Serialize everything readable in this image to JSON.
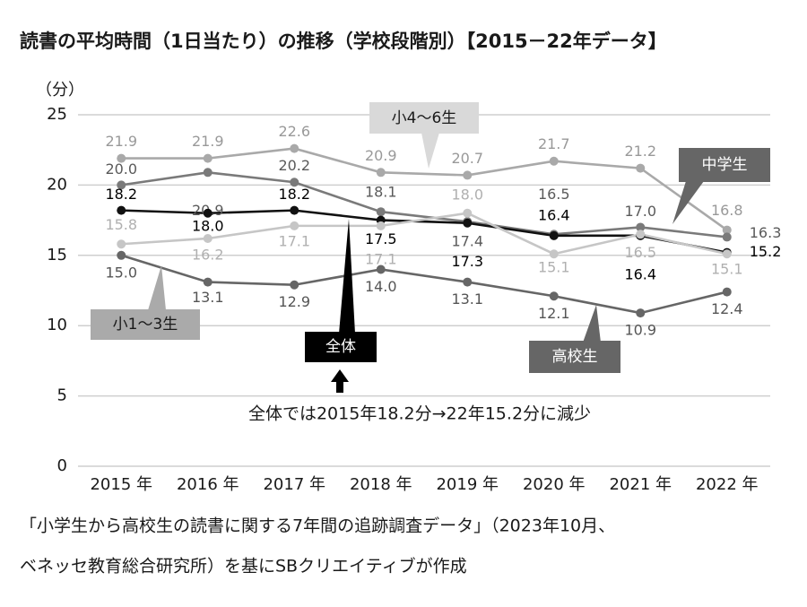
{
  "chart_data": {
    "type": "line",
    "title": "読書の平均時間（1日当たり）の推移（学校段階別）【2015－22年データ】",
    "y_label": "（分）",
    "categories": [
      "2015 年",
      "2016 年",
      "2017 年",
      "2018 年",
      "2019 年",
      "2020 年",
      "2021 年",
      "2022 年"
    ],
    "ylim": [
      0,
      25
    ],
    "yticks": [
      0,
      5,
      10,
      15,
      20,
      25
    ],
    "grid": true,
    "series": [
      {
        "name": "小4〜6生",
        "color": "#a9a9a9",
        "values": [
          21.9,
          21.9,
          22.6,
          20.9,
          20.7,
          21.7,
          21.2,
          16.8
        ],
        "value_labels": [
          "21.9",
          "21.9",
          "22.6",
          "20.9",
          "20.7",
          "21.7",
          "21.2",
          "16.8"
        ]
      },
      {
        "name": "中学生",
        "color": "#7a7a7a",
        "values": [
          20.0,
          20.9,
          20.2,
          18.1,
          17.4,
          16.5,
          17.0,
          16.3
        ],
        "value_labels": [
          "20.0",
          "20.9",
          "20.2",
          "18.1",
          "17.4",
          "16.5",
          "17.0",
          "16.3"
        ]
      },
      {
        "name": "全体",
        "color": "#111111",
        "values": [
          18.2,
          18.0,
          18.2,
          17.5,
          17.3,
          16.4,
          16.4,
          15.2
        ],
        "value_labels": [
          "18.2",
          "18.0",
          "18.2",
          "17.5",
          "17.3",
          "16.4",
          "16.4",
          "15.2"
        ]
      },
      {
        "name": "小1〜3生",
        "color": "#c6c6c6",
        "values": [
          15.8,
          16.2,
          17.1,
          17.1,
          18.0,
          15.1,
          16.5,
          15.1
        ],
        "value_labels": [
          "15.8",
          "16.2",
          "17.1",
          "17.1",
          "18.0",
          "15.1",
          "16.5",
          "15.1"
        ]
      },
      {
        "name": "高校生",
        "color": "#666666",
        "values": [
          15.0,
          13.1,
          12.9,
          14.0,
          13.1,
          12.1,
          10.9,
          12.4
        ],
        "value_labels": [
          "15.0",
          "13.1",
          "12.9",
          "14.0",
          "13.1",
          "12.1",
          "10.9",
          "12.4"
        ]
      }
    ],
    "annotation": "全体では2015年18.2分→22年15.2分に減少",
    "source": [
      "「小学生から高校生の読書に関する7年間の追跡調査データ」（2023年10月、",
      "ベネッセ教育総合研究所）を基にSBクリエイティブが作成"
    ]
  }
}
